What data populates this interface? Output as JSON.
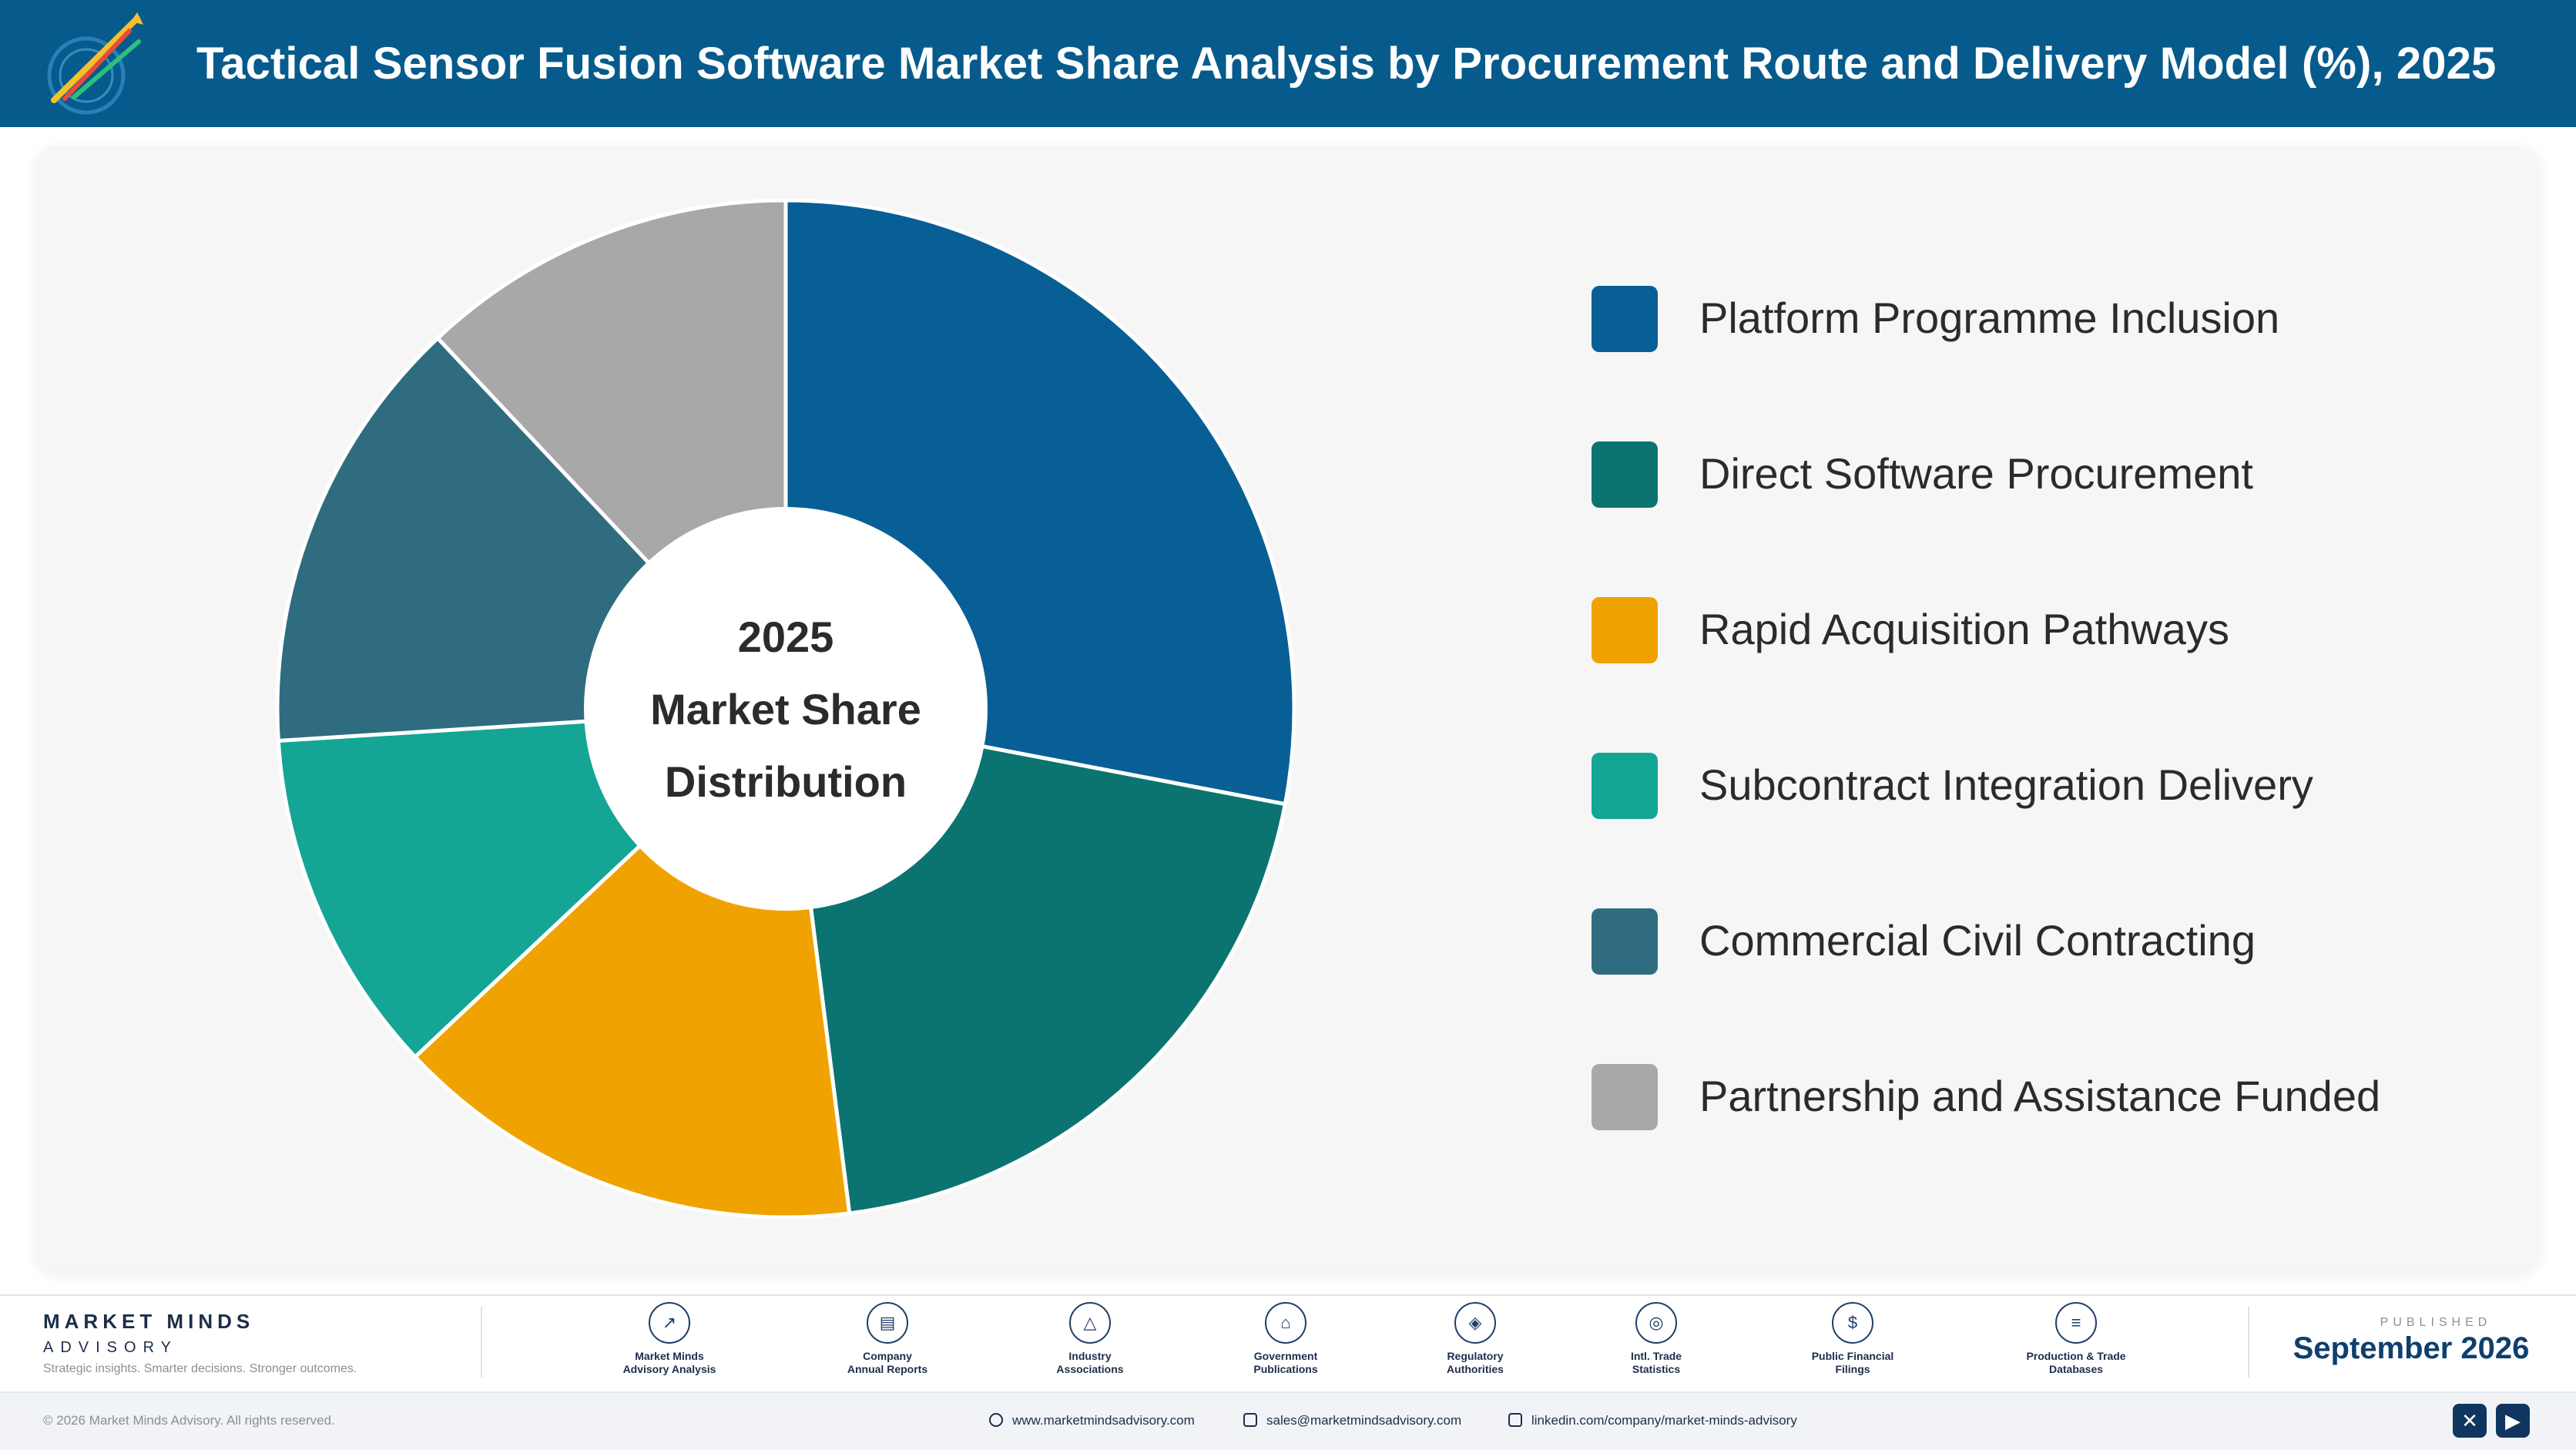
{
  "header": {
    "title": "Tactical Sensor Fusion Software Market Share Analysis by Procurement Route and Delivery Model (%), 2025"
  },
  "chart_data": {
    "type": "pie",
    "center_text": [
      "2025",
      "Market Share",
      "Distribution"
    ],
    "categories": [
      "Platform Programme Inclusion",
      "Direct Software Procurement",
      "Rapid Acquisition Pathways",
      "Subcontract Integration Delivery",
      "Commercial Civil Contracting",
      "Partnership and Assistance Funded"
    ],
    "values": [
      28,
      20,
      15,
      11,
      14,
      12
    ],
    "colors": [
      "#075f95",
      "#0b7470",
      "#f0a300",
      "#14a595",
      "#306c80",
      "#a8a8a8"
    ],
    "legend_position": "right"
  },
  "footer": {
    "brand_name": "MARKET MINDS",
    "brand_sub": "ADVISORY",
    "brand_tagline": "Strategic insights. Smarter decisions. Stronger outcomes.",
    "sources": [
      {
        "label": "Market Minds\nAdvisory Analysis",
        "icon": "trend-icon"
      },
      {
        "label": "Company\nAnnual Reports",
        "icon": "document-icon"
      },
      {
        "label": "Industry\nAssociations",
        "icon": "network-icon"
      },
      {
        "label": "Government\nPublications",
        "icon": "government-icon"
      },
      {
        "label": "Regulatory\nAuthorities",
        "icon": "shield-icon"
      },
      {
        "label": "Intl. Trade\nStatistics",
        "icon": "globe-icon"
      },
      {
        "label": "Public Financial\nFilings",
        "icon": "dollar-icon"
      },
      {
        "label": "Production & Trade\nDatabases",
        "icon": "database-icon"
      }
    ],
    "published_label": "PUBLISHED",
    "published_date": "September 2026",
    "copyright": "© 2026 Market Minds Advisory. All rights reserved.",
    "website": "www.marketmindsadvisory.com",
    "email": "sales@marketmindsadvisory.com",
    "linkedin": "linkedin.com/company/market-minds-advisory"
  }
}
